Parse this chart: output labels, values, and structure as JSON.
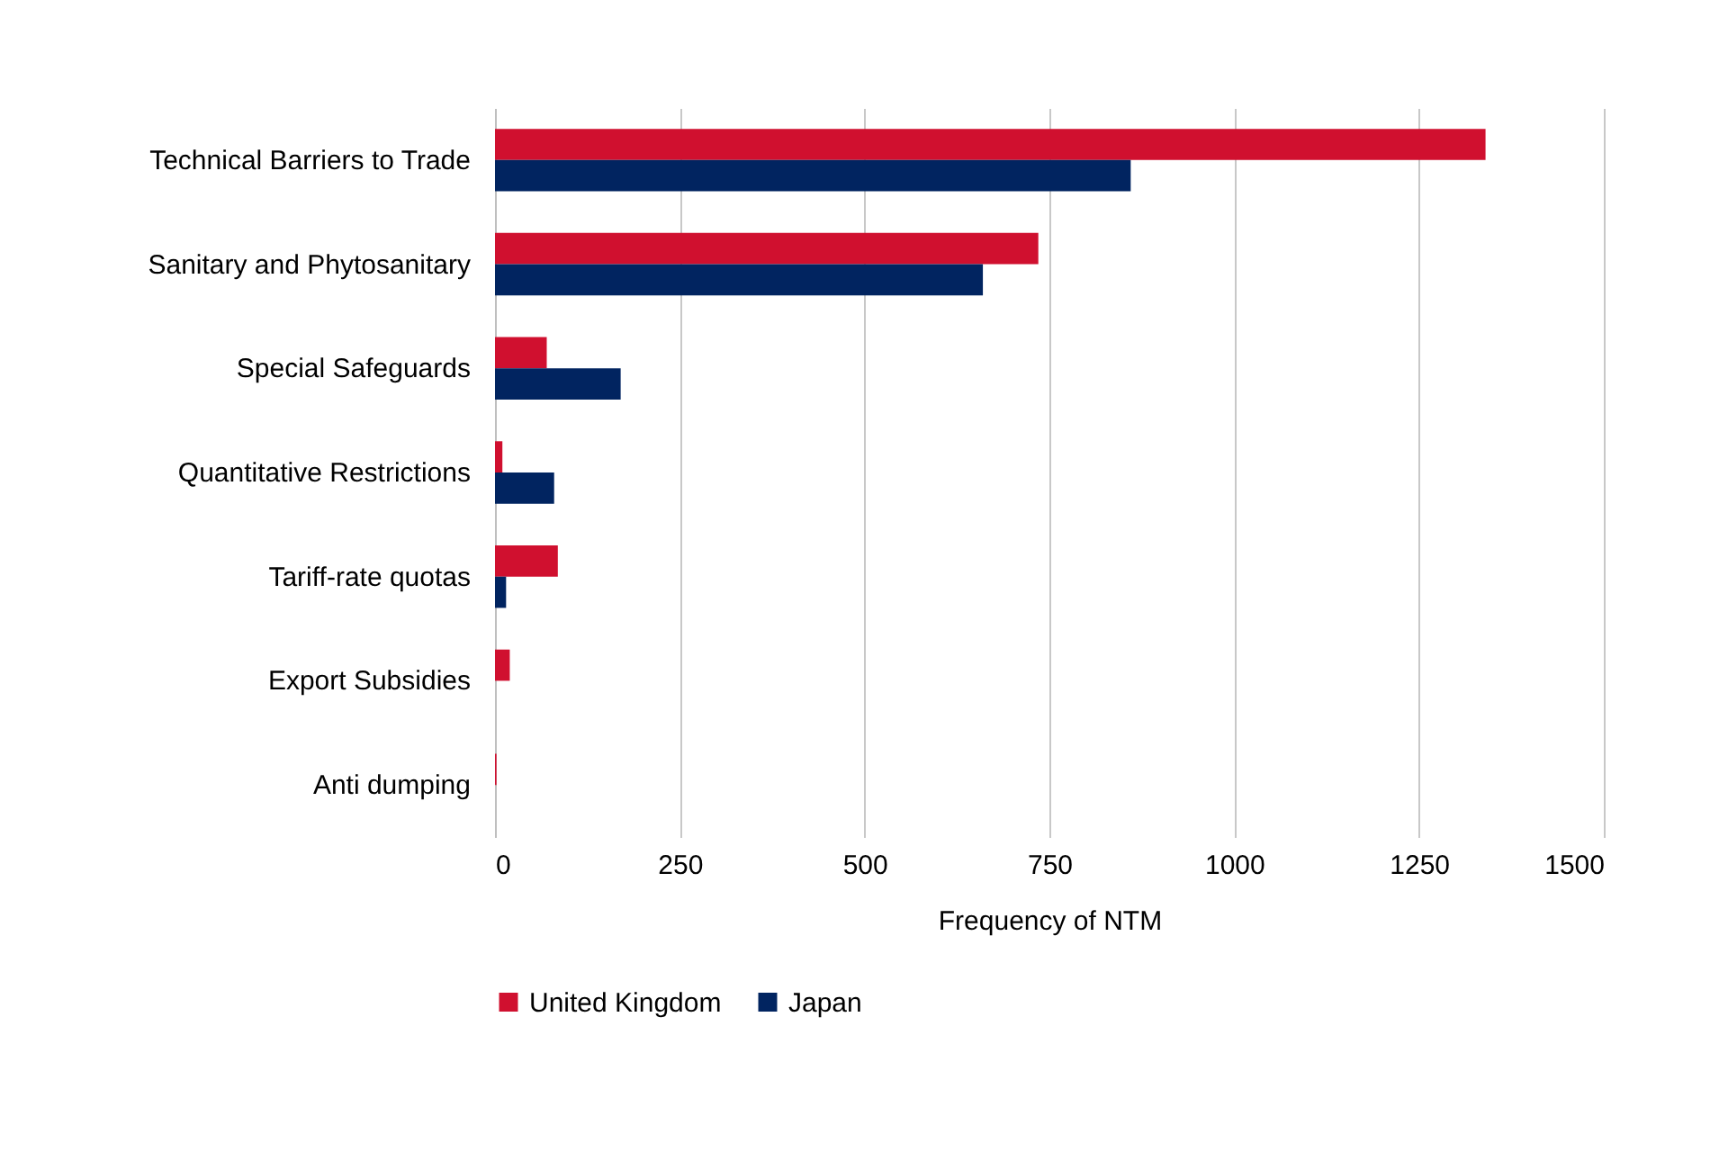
{
  "chart_data": {
    "type": "bar",
    "orientation": "horizontal",
    "xlabel": "Frequency of NTM",
    "categories": [
      "Technical Barriers to Trade",
      "Sanitary and Phytosanitary",
      "Special Safeguards",
      "Quantitative Restrictions",
      "Tariff-rate quotas",
      "Export Subsidies",
      "Anti dumping"
    ],
    "series": [
      {
        "name": "United Kingdom",
        "color": "#d0102f",
        "values": [
          1340,
          735,
          70,
          10,
          85,
          20,
          2
        ]
      },
      {
        "name": "Japan",
        "color": "#012460",
        "values": [
          860,
          660,
          170,
          80,
          15,
          0,
          0
        ]
      }
    ],
    "xlim": [
      0,
      1500
    ],
    "xticks": [
      0,
      250,
      500,
      750,
      1000,
      1250,
      1500
    ],
    "grid": "x",
    "legend": "bottom"
  }
}
